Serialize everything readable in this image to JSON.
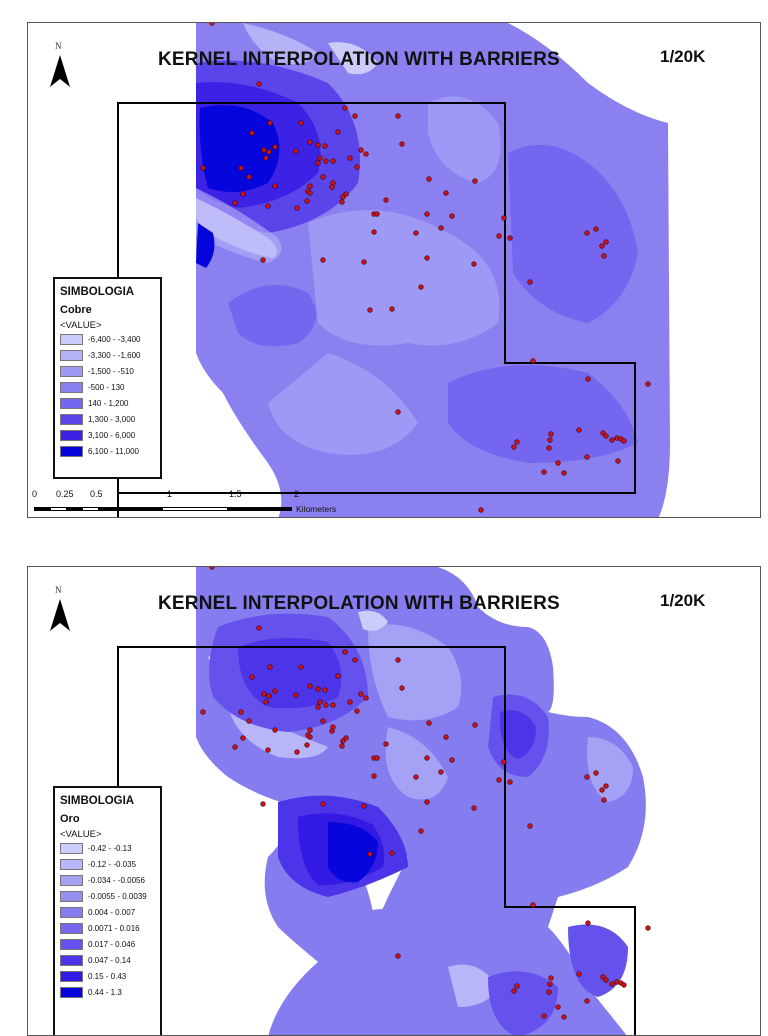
{
  "maps": [
    {
      "title": "KERNEL INTERPOLATION WITH BARRIERS",
      "scale": "1/20K",
      "north_label": "N",
      "legend": {
        "title": "SIMBOLOGIA",
        "layer": "Cobre",
        "field": "<VALUE>",
        "classes": [
          {
            "label": "-6,400 - -3,400",
            "color": "#ccccfa"
          },
          {
            "label": "-3,300 - -1,600",
            "color": "#b5b3f8"
          },
          {
            "label": "-1,500 - -510",
            "color": "#9d99f4"
          },
          {
            "label": "-500 - 130",
            "color": "#8a80f0"
          },
          {
            "label": "140 - 1,200",
            "color": "#7466ee"
          },
          {
            "label": "1,300 - 3,000",
            "color": "#5a45ea"
          },
          {
            "label": "3,100 - 6,000",
            "color": "#3b22e4"
          },
          {
            "label": "6,100 - 11,000",
            "color": "#0505dc"
          }
        ]
      },
      "scalebar": {
        "ticks": [
          "0",
          "0.25",
          "0.5",
          "1",
          "1.5",
          "2"
        ],
        "units": "Kilometers"
      }
    },
    {
      "title": "KERNEL INTERPOLATION WITH BARRIERS",
      "scale": "1/20K",
      "north_label": "N",
      "legend": {
        "title": "SIMBOLOGIA",
        "layer": "Oro",
        "field": "<VALUE>",
        "classes": [
          {
            "label": "-0.42 - -0.13",
            "color": "#ccccfa"
          },
          {
            "label": "-0.12 - -0.035",
            "color": "#b8b6f8"
          },
          {
            "label": "-0.034 - -0.0056",
            "color": "#a5a1f5"
          },
          {
            "label": "-0.0055 - 0.0039",
            "color": "#958ff2"
          },
          {
            "label": "0.004 - 0.007",
            "color": "#857cf0"
          },
          {
            "label": "0.0071 - 0.016",
            "color": "#7767ee"
          },
          {
            "label": "0.017 - 0.046",
            "color": "#6552ec"
          },
          {
            "label": "0.047 - 0.14",
            "color": "#4c34e8"
          },
          {
            "label": "0.15 - 0.43",
            "color": "#3219e3"
          },
          {
            "label": "0.44 - 1.3",
            "color": "#0606dc"
          }
        ]
      }
    }
  ],
  "colors": {
    "sample_point": "#c8141e",
    "boundary": "#000000",
    "frame": "#555555"
  }
}
